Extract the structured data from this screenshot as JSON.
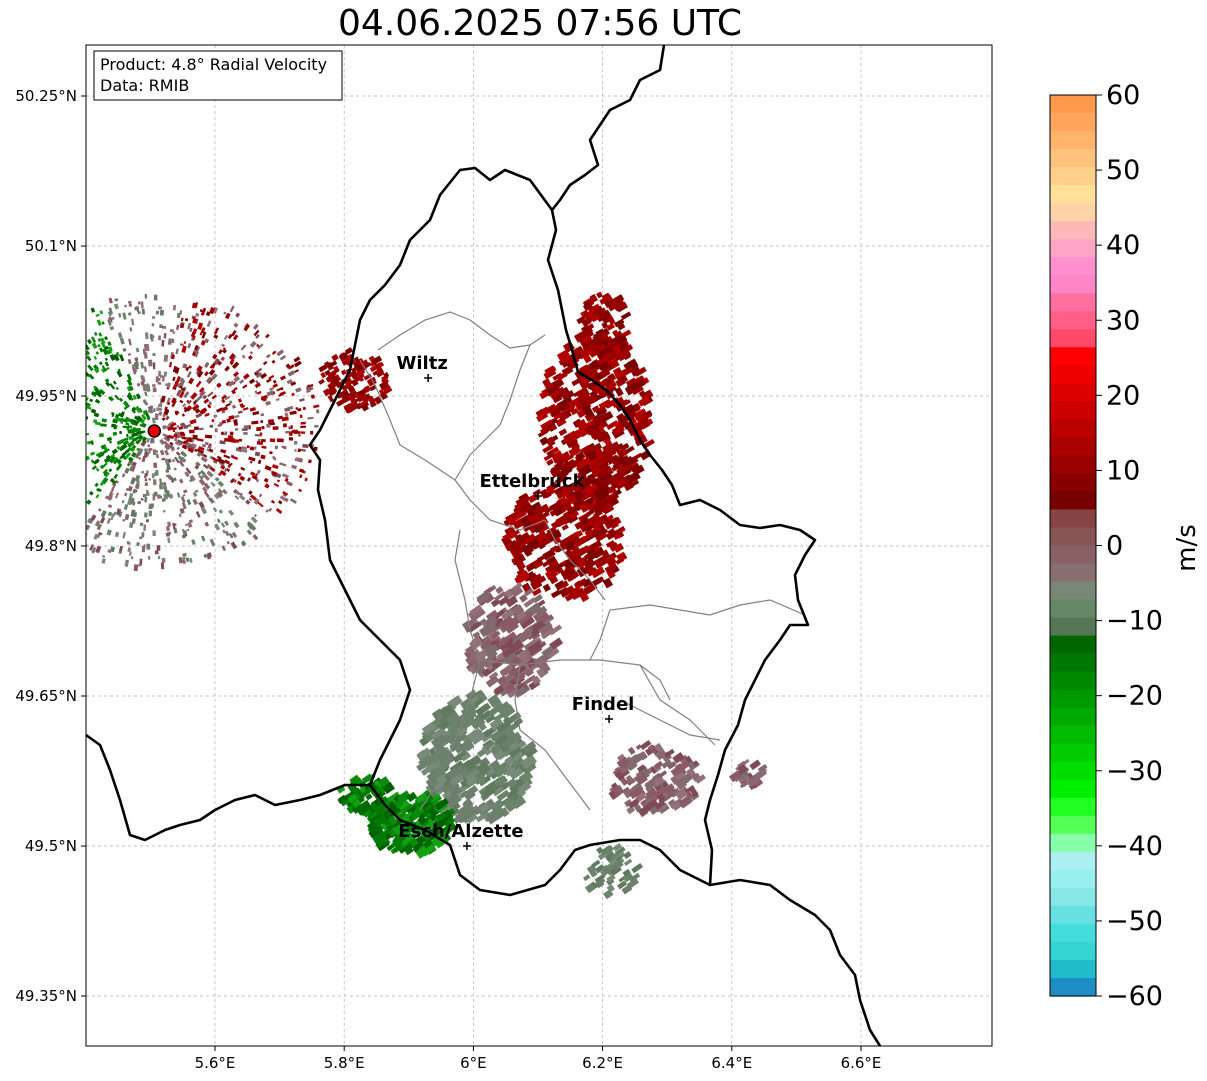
{
  "title": "04.06.2025 07:56 UTC",
  "info_box": {
    "product": "Product: 4.8° Radial Velocity",
    "data": "Data: RMIB"
  },
  "axes": {
    "lon_ticks": [
      "5.6°E",
      "5.8°E",
      "6°E",
      "6.2°E",
      "6.4°E",
      "6.6°E"
    ],
    "lat_ticks": [
      "50.25°N",
      "50.1°N",
      "49.95°N",
      "49.8°N",
      "49.65°N",
      "49.5°N",
      "49.35°N"
    ],
    "lon_values": [
      5.6,
      5.8,
      6.0,
      6.2,
      6.4,
      6.6
    ],
    "lat_values": [
      50.25,
      50.1,
      49.95,
      49.8,
      49.65,
      49.5,
      49.35
    ],
    "lon_range": [
      5.4,
      6.8
    ],
    "lat_range": [
      49.3,
      50.3
    ],
    "grid": true
  },
  "cities": [
    {
      "name": "Wiltz",
      "lon": 5.93,
      "lat": 49.968
    },
    {
      "name": "Ettelbruck",
      "lon": 6.1,
      "lat": 49.85
    },
    {
      "name": "Findel",
      "lon": 6.21,
      "lat": 49.627
    },
    {
      "name": "Esch/Alzette",
      "lon": 5.99,
      "lat": 49.5
    }
  ],
  "radar_site": {
    "lon": 5.506,
    "lat": 49.915
  },
  "colorbar": {
    "label": "m/s",
    "min": -60,
    "max": 60,
    "tick_values": [
      60,
      50,
      40,
      30,
      20,
      10,
      0,
      -10,
      -20,
      -30,
      -40,
      -50,
      -60
    ],
    "tick_labels": [
      "60",
      "50",
      "40",
      "30",
      "20",
      "10",
      "0",
      "−10",
      "−20",
      "−30",
      "−40",
      "−50",
      "−60"
    ],
    "colors": [
      "#ff9a4d",
      "#ffa55c",
      "#ffb36b",
      "#ffc27d",
      "#ffd08c",
      "#ffe099",
      "#ffd3a8",
      "#ffb8b8",
      "#ffa5c6",
      "#ff90d0",
      "#ff85c8",
      "#ff70a0",
      "#ff5f86",
      "#ff4a6c",
      "#ff0000",
      "#ee0000",
      "#dd0000",
      "#cc0000",
      "#bb0000",
      "#aa0000",
      "#990000",
      "#880000",
      "#770000",
      "#884444",
      "#885555",
      "#886066",
      "#887070",
      "#778877",
      "#668866",
      "#557755",
      "#006600",
      "#007700",
      "#008800",
      "#009900",
      "#00aa00",
      "#00bb00",
      "#00cc00",
      "#00dd00",
      "#00ee00",
      "#22ff22",
      "#55ff55",
      "#88ffaa",
      "#aaf0f0",
      "#99eeee",
      "#88e8e8",
      "#66e0e0",
      "#44dddd",
      "#33d5d5",
      "#22bbcc",
      "#1f8ec5"
    ]
  },
  "colors": {
    "border": "#000000",
    "cantons": "#808080",
    "grid": "#b0b0b0"
  }
}
